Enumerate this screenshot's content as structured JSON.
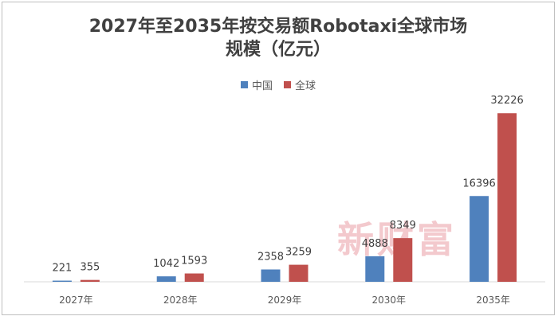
{
  "chart_data": {
    "type": "bar",
    "title_lines": [
      "2027年至2035年按交易额Robotaxi全球市场",
      "规模（亿元）"
    ],
    "categories": [
      "2027年",
      "2028年",
      "2029年",
      "2030年",
      "2035年"
    ],
    "series": [
      {
        "name": "中国",
        "values": [
          221,
          1042,
          2358,
          4888,
          16396
        ],
        "color": "#4f81bd"
      },
      {
        "name": "全球",
        "values": [
          355,
          1593,
          3259,
          8349,
          32226
        ],
        "color": "#c0504d"
      }
    ],
    "ylim": [
      0,
      35000
    ],
    "grid": false,
    "legend_position": "top-center",
    "data_labels": true
  },
  "watermark_text": "新财富"
}
